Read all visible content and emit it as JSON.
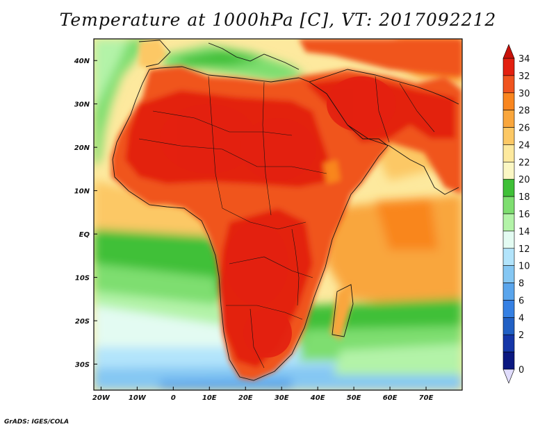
{
  "title": "Temperature at 1000hPa [C], VT: 2017092212",
  "footer": "GrADS: IGES/COLA",
  "map": {
    "lon_range": [
      -22,
      80
    ],
    "lat_range": [
      -36,
      45
    ],
    "lon_ticks": [
      {
        "value": -20,
        "label": "20W"
      },
      {
        "value": -10,
        "label": "10W"
      },
      {
        "value": 0,
        "label": "0"
      },
      {
        "value": 10,
        "label": "10E"
      },
      {
        "value": 20,
        "label": "20E"
      },
      {
        "value": 30,
        "label": "30E"
      },
      {
        "value": 40,
        "label": "40E"
      },
      {
        "value": 50,
        "label": "50E"
      },
      {
        "value": 60,
        "label": "60E"
      },
      {
        "value": 70,
        "label": "70E"
      }
    ],
    "lat_ticks": [
      {
        "value": 40,
        "label": "40N"
      },
      {
        "value": 30,
        "label": "30N"
      },
      {
        "value": 20,
        "label": "20N"
      },
      {
        "value": 10,
        "label": "10N"
      },
      {
        "value": 0,
        "label": "EQ"
      },
      {
        "value": -10,
        "label": "10S"
      },
      {
        "value": -20,
        "label": "20S"
      },
      {
        "value": -30,
        "label": "30S"
      }
    ]
  },
  "colorbar": {
    "levels": [
      "34",
      "32",
      "30",
      "28",
      "26",
      "24",
      "22",
      "20",
      "18",
      "16",
      "14",
      "12",
      "10",
      "8",
      "6",
      "4",
      "2",
      "0"
    ],
    "colors": [
      "#e32010",
      "#f0541f",
      "#f9861f",
      "#f9a63c",
      "#fcc865",
      "#fde99e",
      "#fbf7c4",
      "#3fc037",
      "#7ede70",
      "#b3f3a8",
      "#e3fbf2",
      "#b2e4fb",
      "#85c7f3",
      "#5aa5ec",
      "#3580e3",
      "#2160c4",
      "#1536a8",
      "#0b1880"
    ],
    "top_arrow_color": "#c8120a",
    "bottom_arrow_color": "#e0dcfc"
  }
}
